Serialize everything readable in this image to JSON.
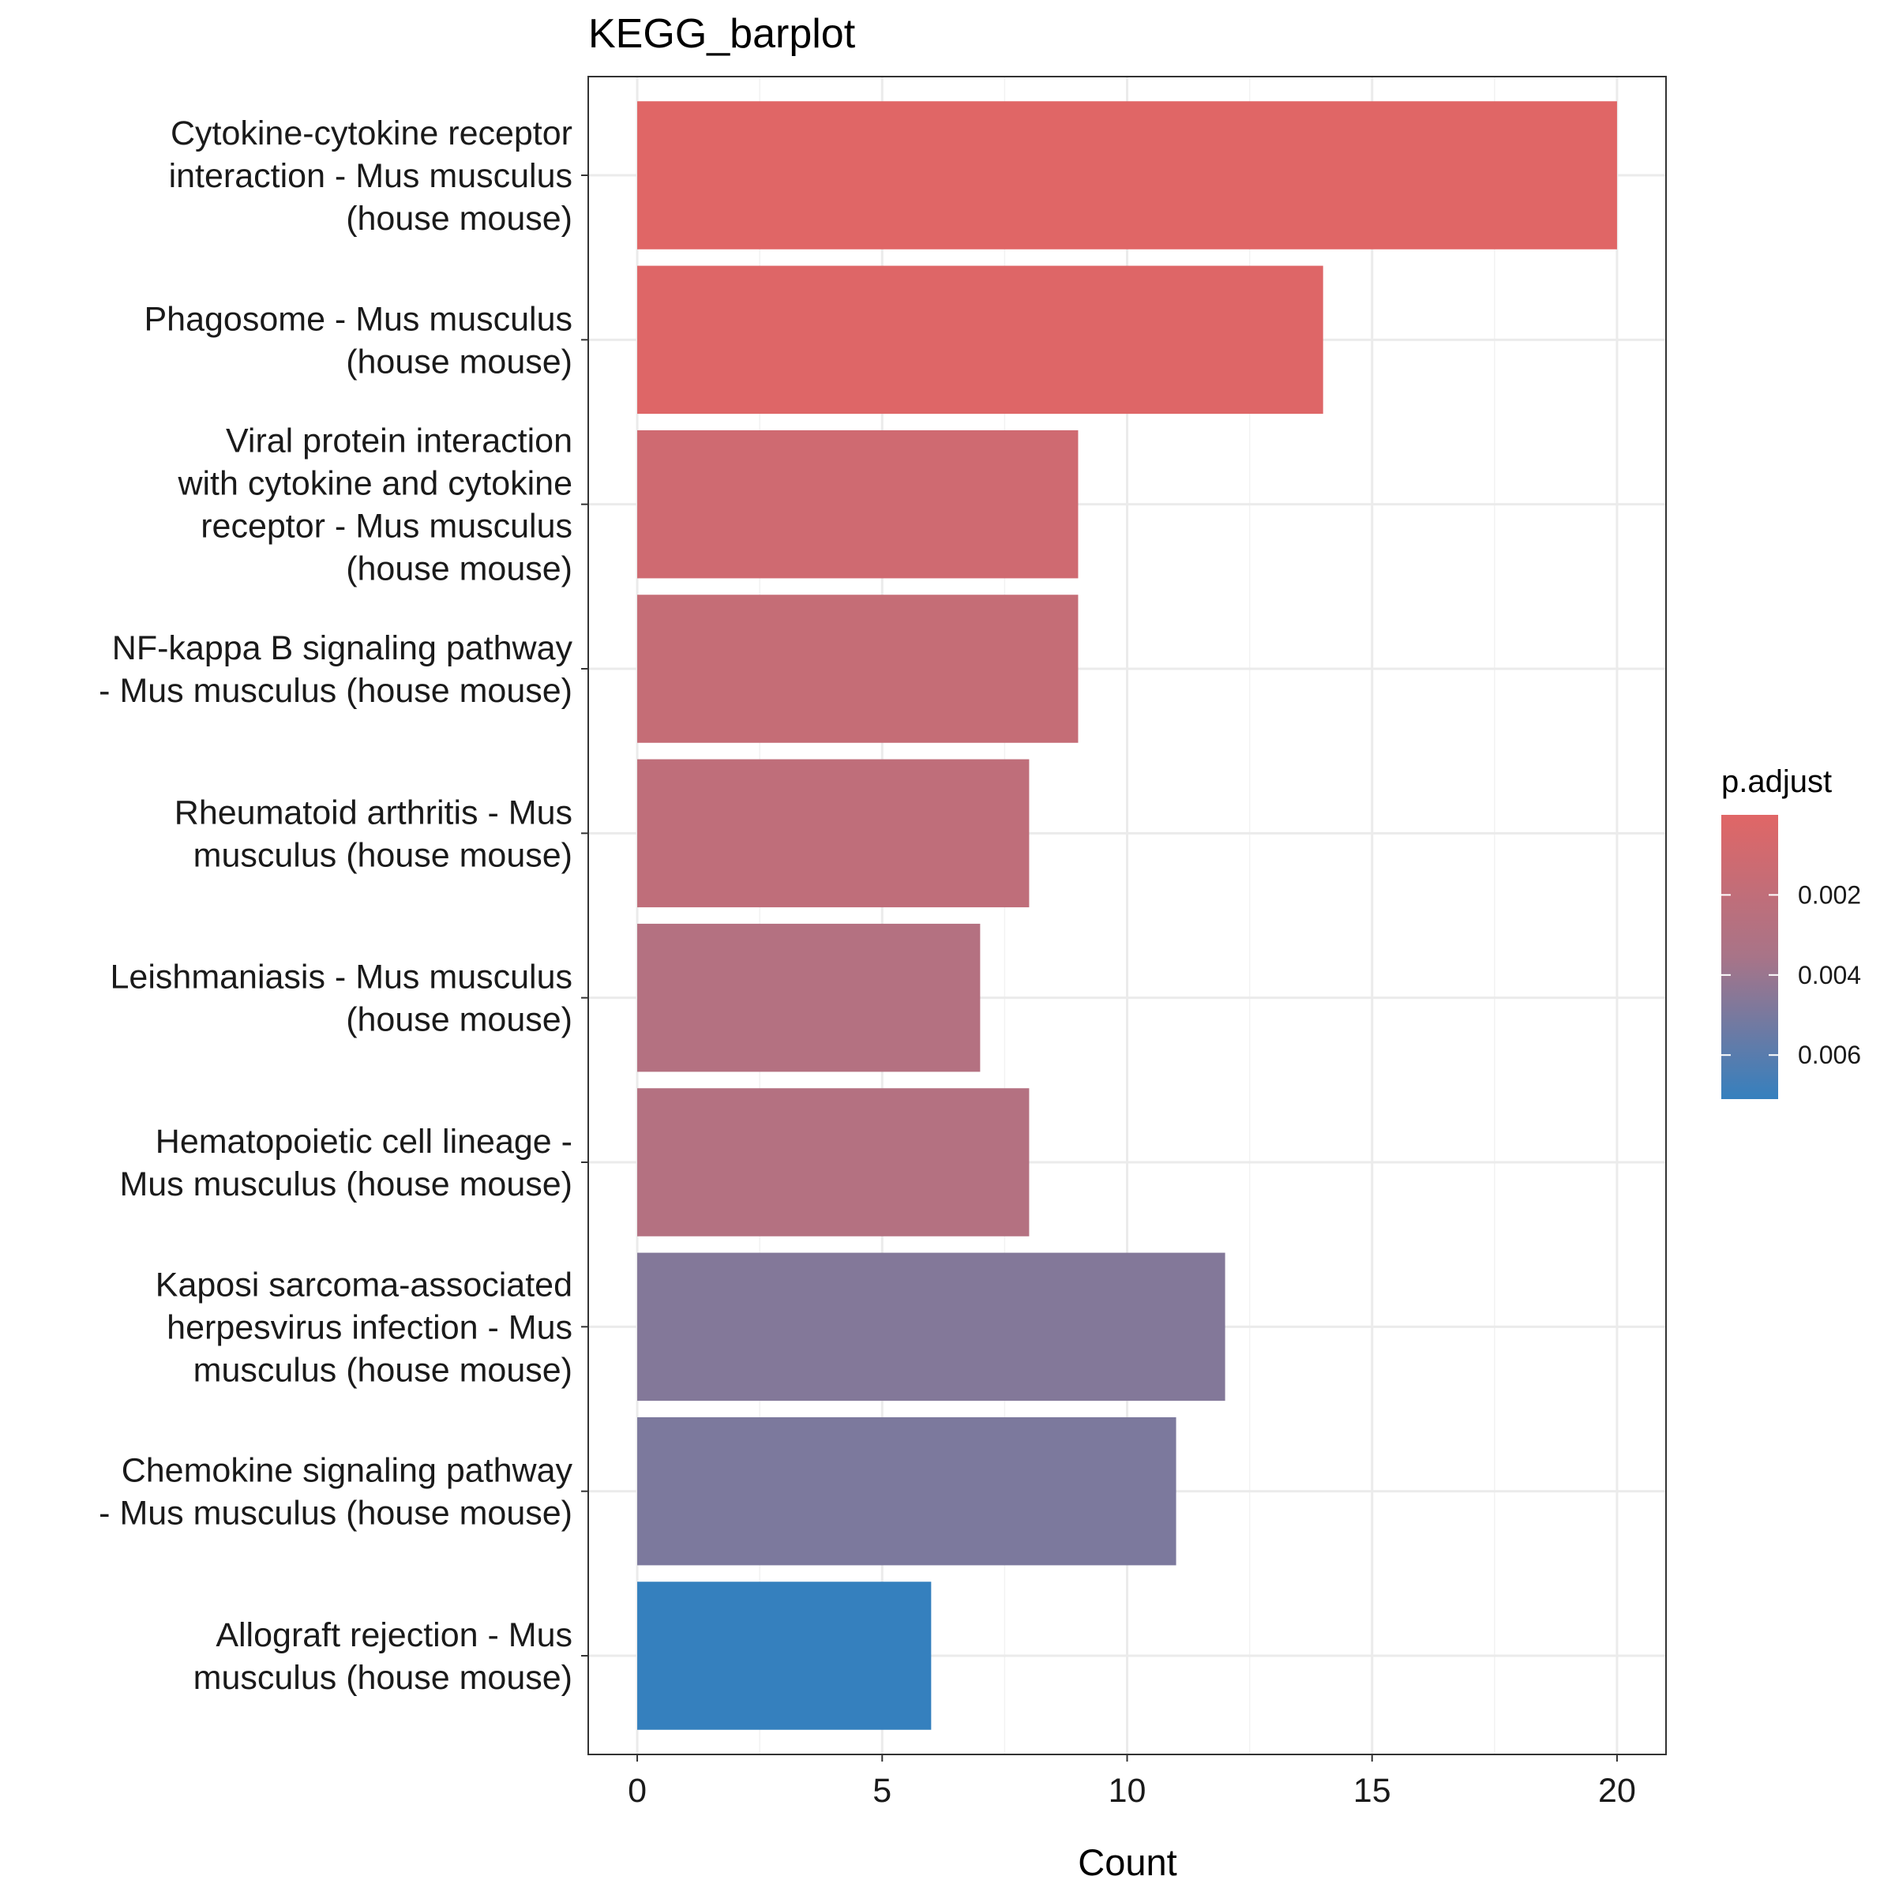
{
  "chart_data": {
    "type": "bar",
    "orientation": "horizontal",
    "title": "KEGG_barplot",
    "xlabel": "Count",
    "ylabel": "",
    "xlim": [
      -1,
      21
    ],
    "xticks": [
      0,
      5,
      10,
      15,
      20
    ],
    "grid": true,
    "categories": [
      [
        "Cytokine-cytokine receptor",
        "interaction - Mus musculus",
        "(house mouse)"
      ],
      [
        "Phagosome - Mus musculus",
        "(house mouse)"
      ],
      [
        "Viral protein interaction",
        "with cytokine and cytokine",
        "receptor - Mus musculus",
        "(house mouse)"
      ],
      [
        "NF-kappa B signaling pathway",
        "- Mus musculus (house mouse)"
      ],
      [
        "Rheumatoid arthritis - Mus",
        "musculus (house mouse)"
      ],
      [
        "Leishmaniasis - Mus musculus",
        "(house mouse)"
      ],
      [
        "Hematopoietic cell lineage -",
        "Mus musculus (house mouse)"
      ],
      [
        "Kaposi sarcoma-associated",
        "herpesvirus infection - Mus",
        "musculus (house mouse)"
      ],
      [
        "Chemokine signaling pathway",
        "- Mus musculus (house mouse)"
      ],
      [
        "Allograft rejection - Mus",
        "musculus (house mouse)"
      ]
    ],
    "values": [
      20,
      14,
      9,
      9,
      8,
      7,
      8,
      12,
      11,
      6
    ],
    "p_adjust": [
      3e-05,
      0.0001,
      0.0011,
      0.0017,
      0.0021,
      0.0028,
      0.0028,
      0.0047,
      0.0049,
      0.0074
    ],
    "legend": {
      "title": "p.adjust",
      "position": "right",
      "ticks": [
        0.002,
        0.004,
        0.006
      ],
      "range": [
        0.0,
        0.0071
      ],
      "color_low": "#E06666",
      "color_mid": "#A87488",
      "color_high": "#3580BE"
    }
  }
}
